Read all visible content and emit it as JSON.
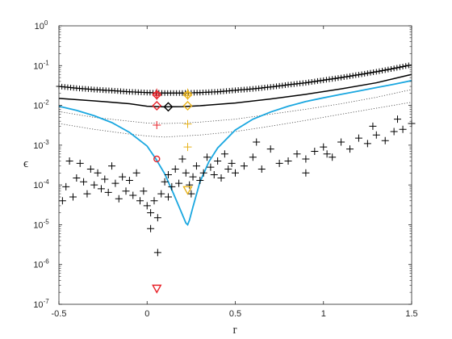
{
  "chart_data": {
    "type": "scatter",
    "title": "",
    "xlabel": "r",
    "ylabel": "ϵ",
    "xlim": [
      -0.5,
      1.5
    ],
    "ylim": [
      1e-07,
      1
    ],
    "yscale": "log",
    "grid": false,
    "x_ticks": [
      {
        "value": -0.5,
        "label": "-0.5"
      },
      {
        "value": 0,
        "label": "0"
      },
      {
        "value": 0.5,
        "label": "0.5"
      },
      {
        "value": 1,
        "label": "1"
      },
      {
        "value": 1.5,
        "label": "1.5"
      }
    ],
    "y_ticks": [
      {
        "value": 1e-07,
        "label": "10",
        "exp": "-7"
      },
      {
        "value": 1e-06,
        "label": "10",
        "exp": "-6"
      },
      {
        "value": 1e-05,
        "label": "10",
        "exp": "-5"
      },
      {
        "value": 0.0001,
        "label": "10",
        "exp": "-4"
      },
      {
        "value": 0.001,
        "label": "10",
        "exp": "-3"
      },
      {
        "value": 0.01,
        "label": "10",
        "exp": "-2"
      },
      {
        "value": 0.1,
        "label": "10",
        "exp": "-1"
      },
      {
        "value": 1,
        "label": "10",
        "exp": "0"
      }
    ],
    "series": [
      {
        "style": "line",
        "color": "#000000",
        "width": 1.5,
        "x": [
          -0.5,
          -0.3,
          -0.1,
          0.0,
          0.1,
          0.2,
          0.3,
          0.5,
          0.7,
          0.9,
          1.1,
          1.3,
          1.5
        ],
        "y": [
          0.015,
          0.013,
          0.011,
          0.0095,
          0.0092,
          0.0093,
          0.0098,
          0.0115,
          0.0145,
          0.019,
          0.026,
          0.037,
          0.06
        ]
      },
      {
        "style": "dotted",
        "color": "#444444",
        "width": 0.8,
        "x": [
          -0.5,
          -0.3,
          -0.1,
          0.0,
          0.1,
          0.2,
          0.3,
          0.5,
          0.7,
          0.9,
          1.1,
          1.3,
          1.5
        ],
        "y": [
          0.007,
          0.005,
          0.004,
          0.0036,
          0.0035,
          0.0036,
          0.0038,
          0.0045,
          0.006,
          0.008,
          0.011,
          0.016,
          0.025
        ]
      },
      {
        "style": "dotted",
        "color": "#444444",
        "width": 0.8,
        "x": [
          -0.5,
          -0.3,
          -0.1,
          0.0,
          0.1,
          0.2,
          0.3,
          0.5,
          0.7,
          0.9,
          1.1,
          1.3,
          1.5
        ],
        "y": [
          0.0035,
          0.0025,
          0.0019,
          0.0017,
          0.0016,
          0.0017,
          0.0018,
          0.0022,
          0.003,
          0.0042,
          0.006,
          0.0085,
          0.012
        ]
      },
      {
        "style": "plus-line",
        "color": "#000000",
        "size": 7,
        "x": [
          -0.5,
          -0.4,
          -0.3,
          -0.2,
          -0.1,
          0.0,
          0.1,
          0.2,
          0.3,
          0.4,
          0.5,
          0.6,
          0.7,
          0.8,
          0.9,
          1.0,
          1.1,
          1.2,
          1.3,
          1.4,
          1.5
        ],
        "y": [
          0.03,
          0.027,
          0.025,
          0.0235,
          0.022,
          0.021,
          0.0205,
          0.0205,
          0.021,
          0.022,
          0.024,
          0.026,
          0.029,
          0.033,
          0.037,
          0.043,
          0.05,
          0.059,
          0.07,
          0.085,
          0.105
        ]
      },
      {
        "style": "line",
        "color": "#1aa7e0",
        "width": 1.8,
        "x": [
          -0.5,
          -0.4,
          -0.3,
          -0.2,
          -0.1,
          0.0,
          0.05,
          0.1,
          0.15,
          0.2,
          0.22,
          0.23,
          0.24,
          0.26,
          0.3,
          0.35,
          0.4,
          0.5,
          0.6,
          0.7,
          0.8,
          0.9,
          1.0,
          1.1,
          1.2,
          1.3,
          1.4,
          1.5
        ],
        "y": [
          0.0095,
          0.0075,
          0.0055,
          0.0037,
          0.0021,
          0.00095,
          0.00045,
          0.00019,
          6e-05,
          1.8e-05,
          1.1e-05,
          1e-05,
          1.3e-05,
          2.8e-05,
          0.00012,
          0.00038,
          0.00085,
          0.0024,
          0.0045,
          0.0068,
          0.0095,
          0.0125,
          0.0155,
          0.019,
          0.023,
          0.028,
          0.034,
          0.042
        ]
      },
      {
        "style": "plus",
        "color": "#000000",
        "size": 9,
        "x": [
          -0.48,
          -0.46,
          -0.44,
          -0.42,
          -0.4,
          -0.38,
          -0.36,
          -0.34,
          -0.32,
          -0.3,
          -0.28,
          -0.26,
          -0.24,
          -0.22,
          -0.2,
          -0.18,
          -0.16,
          -0.14,
          -0.12,
          -0.1,
          -0.08,
          -0.06,
          -0.04,
          -0.02,
          0.0,
          0.02,
          0.04,
          0.06,
          0.08,
          0.1,
          0.12,
          0.14,
          0.16,
          0.18,
          0.2,
          0.22,
          0.24,
          0.26,
          0.28,
          0.3,
          0.32,
          0.34,
          0.36,
          0.38,
          0.4,
          0.42,
          0.44,
          0.46,
          0.48,
          0.5,
          0.55,
          0.6,
          0.65,
          0.7,
          0.75,
          0.8,
          0.85,
          0.9,
          0.95,
          1.0,
          1.05,
          1.1,
          1.15,
          1.2,
          1.25,
          1.3,
          1.35,
          1.4,
          1.45,
          1.5,
          0.06,
          0.02,
          0.12,
          0.25,
          0.62,
          0.9,
          1.02,
          1.28,
          1.42
        ],
        "y": [
          4e-05,
          9e-05,
          0.0004,
          5e-05,
          0.00015,
          0.00035,
          0.00012,
          6e-05,
          0.00025,
          0.0001,
          0.0002,
          8e-05,
          0.00014,
          6.5e-05,
          0.0003,
          0.00011,
          4.5e-05,
          0.00016,
          7e-05,
          0.00013,
          5.5e-05,
          0.0002,
          4e-05,
          7e-05,
          3e-05,
          2e-05,
          4e-05,
          1.5e-05,
          6e-05,
          0.00012,
          0.00018,
          9e-05,
          0.00025,
          0.00011,
          0.00045,
          0.0002,
          0.0001,
          0.00016,
          0.0003,
          0.00013,
          0.0002,
          0.0005,
          0.00028,
          0.00018,
          0.0004,
          0.00015,
          0.0006,
          0.00025,
          0.00035,
          0.0002,
          0.0003,
          0.0005,
          0.00025,
          0.0008,
          0.00035,
          0.0004,
          0.0006,
          0.00045,
          0.0007,
          0.0009,
          0.0005,
          0.0012,
          0.0008,
          0.0015,
          0.0011,
          0.0018,
          0.0013,
          0.0022,
          0.0025,
          0.0035,
          2e-06,
          8e-06,
          5e-05,
          6e-05,
          0.0012,
          0.0002,
          0.0006,
          0.003,
          0.0045
        ]
      },
      {
        "style": "plus",
        "color": "#e8232a",
        "size": 10,
        "x": [
          0.055,
          0.055,
          0.055,
          0.055
        ],
        "y": [
          0.0175,
          0.019,
          0.021,
          0.0032
        ]
      },
      {
        "style": "plus",
        "color": "#e8b21a",
        "size": 10,
        "x": [
          0.23,
          0.23,
          0.23,
          0.23,
          0.23
        ],
        "y": [
          0.0175,
          0.019,
          0.021,
          0.0034,
          0.0009
        ]
      },
      {
        "style": "diamond",
        "color": "#e8232a",
        "size": 5,
        "x": [
          0.055,
          0.055
        ],
        "y": [
          0.0185,
          0.0098
        ]
      },
      {
        "style": "diamond",
        "color": "#e8b21a",
        "size": 5,
        "x": [
          0.23,
          0.23
        ],
        "y": [
          0.0185,
          0.0098
        ]
      },
      {
        "style": "diamond",
        "color": "#000000",
        "size": 5,
        "x": [
          0.12
        ],
        "y": [
          0.0092
        ]
      },
      {
        "style": "circle",
        "color": "#e8232a",
        "size": 3.5,
        "x": [
          0.055
        ],
        "y": [
          0.00045
        ]
      },
      {
        "style": "triangle-down",
        "color": "#e8232a",
        "size": 5,
        "x": [
          0.055
        ],
        "y": [
          2.5e-07
        ]
      },
      {
        "style": "triangle-down",
        "color": "#e8b21a",
        "size": 5,
        "x": [
          0.23
        ],
        "y": [
          7.5e-05
        ]
      }
    ]
  }
}
